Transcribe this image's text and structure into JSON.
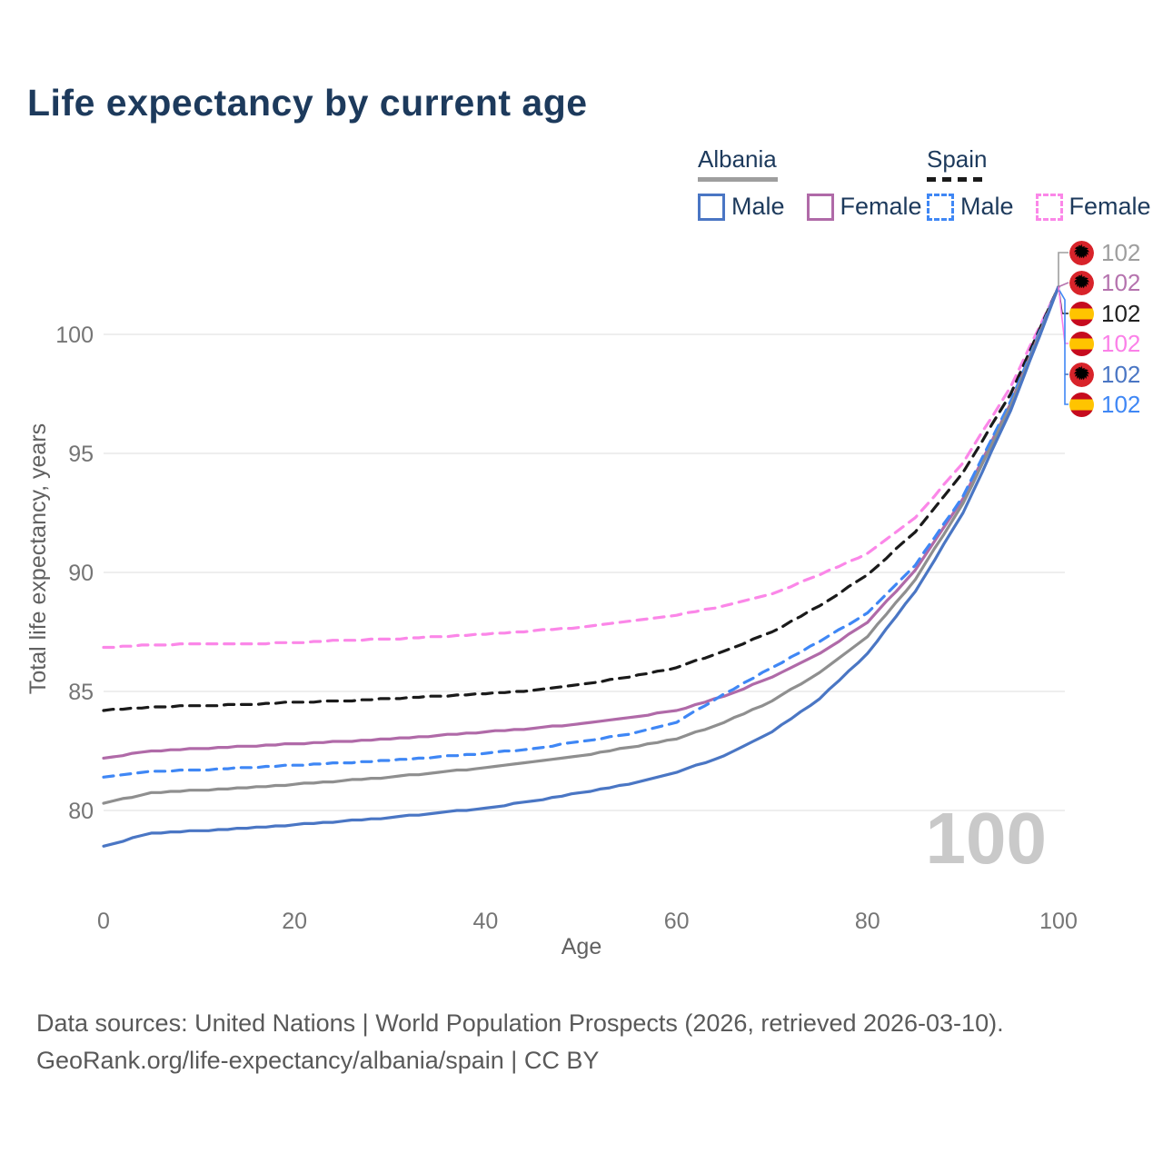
{
  "title": "Life expectancy by current age",
  "legend": {
    "albania": {
      "label": "Albania",
      "male": "Male",
      "female": "Female"
    },
    "spain": {
      "label": "Spain",
      "male": "Male",
      "female": "Female"
    }
  },
  "axes": {
    "y_title": "Total life expectancy, years",
    "x_title": "Age",
    "y_ticks": [
      100,
      95,
      90,
      85,
      80
    ],
    "x_ticks": [
      0,
      20,
      40,
      60,
      80,
      100
    ]
  },
  "watermark": "100",
  "footer": {
    "line1": "Data sources: United Nations | World Population Prospects (2026, retrieved 2026-03-10).",
    "line2": "GeoRank.org/life-expectancy/albania/spain | CC BY"
  },
  "colors": {
    "albania_male": "#4a76c4",
    "albania_female": "#b06aa8",
    "albania_all": "#8f8f8f",
    "spain_male": "#3f87f5",
    "spain_all": "#1a1a1a",
    "spain_female": "#fb87e8",
    "grid": "#e8e8e8",
    "tick_text": "#757575",
    "axis_title": "#616161",
    "watermark": "#c9c9c9",
    "title": "#1d3a5c"
  },
  "end_labels": [
    {
      "flag": "albania",
      "value": "102",
      "color": "#9e9e9e",
      "series": "Albania All"
    },
    {
      "flag": "albania",
      "value": "102",
      "color": "#b573ae",
      "series": "Albania Female"
    },
    {
      "flag": "spain",
      "value": "102",
      "color": "#212121",
      "series": "Spain All"
    },
    {
      "flag": "spain",
      "value": "102",
      "color": "#fb80e8",
      "series": "Spain Female"
    },
    {
      "flag": "albania",
      "value": "102",
      "color": "#4a76c4",
      "series": "Albania Male"
    },
    {
      "flag": "spain",
      "value": "102",
      "color": "#3f87f5",
      "series": "Spain Male"
    }
  ],
  "chart_data": {
    "type": "line",
    "title": "Life expectancy by current age",
    "xlabel": "Age",
    "ylabel": "Total life expectancy, years",
    "xlim": [
      0,
      100
    ],
    "ylim": [
      77.5,
      103
    ],
    "grid": "horizontal",
    "x": [
      0,
      5,
      10,
      15,
      20,
      25,
      30,
      35,
      40,
      45,
      50,
      55,
      60,
      65,
      70,
      75,
      80,
      85,
      90,
      95,
      100
    ],
    "series": [
      {
        "name": "Spain Female",
        "country": "Spain",
        "sex": "female",
        "dash": "dashed",
        "color": "#fb87e8",
        "values": [
          86.85,
          86.95,
          87.0,
          87.0,
          87.05,
          87.15,
          87.2,
          87.3,
          87.4,
          87.55,
          87.7,
          87.95,
          88.2,
          88.6,
          89.1,
          89.9,
          90.8,
          92.3,
          94.6,
          97.8,
          102
        ]
      },
      {
        "name": "Spain All",
        "country": "Spain",
        "sex": "all",
        "dash": "dashed",
        "color": "#1a1a1a",
        "values": [
          84.2,
          84.35,
          84.4,
          84.45,
          84.55,
          84.6,
          84.7,
          84.8,
          84.9,
          85.05,
          85.3,
          85.6,
          86.0,
          86.7,
          87.5,
          88.6,
          89.9,
          91.7,
          94.2,
          97.5,
          102
        ]
      },
      {
        "name": "Albania Female",
        "country": "Albania",
        "sex": "female",
        "dash": "solid",
        "color": "#b06aa8",
        "values": [
          82.2,
          82.5,
          82.6,
          82.7,
          82.8,
          82.9,
          83.0,
          83.15,
          83.3,
          83.45,
          83.65,
          83.9,
          84.2,
          84.8,
          85.6,
          86.6,
          87.9,
          90.1,
          93.1,
          97.1,
          102
        ]
      },
      {
        "name": "Spain Male",
        "country": "Spain",
        "sex": "male",
        "dash": "dashed",
        "color": "#3f87f5",
        "values": [
          81.4,
          81.65,
          81.7,
          81.8,
          81.9,
          82.0,
          82.1,
          82.25,
          82.4,
          82.6,
          82.9,
          83.2,
          83.7,
          84.9,
          86.0,
          87.1,
          88.3,
          90.3,
          93.2,
          97.2,
          102
        ]
      },
      {
        "name": "Albania All",
        "country": "Albania",
        "sex": "all",
        "dash": "solid",
        "color": "#8f8f8f",
        "values": [
          80.3,
          80.75,
          80.85,
          80.95,
          81.1,
          81.25,
          81.4,
          81.6,
          81.8,
          82.05,
          82.3,
          82.65,
          83.0,
          83.7,
          84.6,
          85.8,
          87.3,
          89.7,
          92.9,
          97.0,
          102
        ]
      },
      {
        "name": "Albania Male",
        "country": "Albania",
        "sex": "male",
        "dash": "solid",
        "color": "#4a76c4",
        "values": [
          78.5,
          79.05,
          79.15,
          79.25,
          79.4,
          79.55,
          79.7,
          79.9,
          80.1,
          80.4,
          80.75,
          81.1,
          81.6,
          82.3,
          83.3,
          84.7,
          86.6,
          89.2,
          92.5,
          96.8,
          102
        ]
      }
    ]
  }
}
